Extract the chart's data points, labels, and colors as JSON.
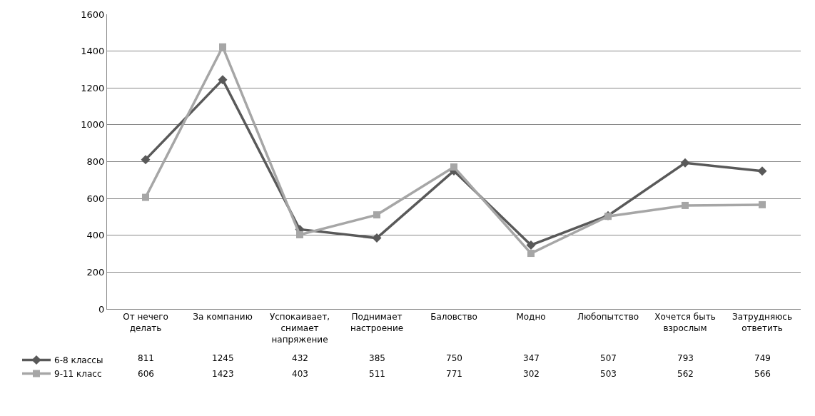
{
  "chart_data": {
    "type": "line",
    "categories": [
      "От нечего делать",
      "За компанию",
      "Успокаивает, снимает напряжение",
      "Поднимает настроение",
      "Баловство",
      "Модно",
      "Любопытство",
      "Хочется быть взрослым",
      "Затрудняюсь ответить"
    ],
    "series": [
      {
        "name": "6-8 классы",
        "color": "#595959",
        "marker": "diamond",
        "values": [
          811,
          1245,
          432,
          385,
          750,
          347,
          507,
          793,
          749
        ]
      },
      {
        "name": "9-11 класс",
        "color": "#a6a6a6",
        "marker": "square",
        "values": [
          606,
          1423,
          403,
          511,
          771,
          302,
          503,
          562,
          566
        ]
      }
    ],
    "ylim": [
      0,
      1600
    ],
    "yticks": [
      0,
      200,
      400,
      600,
      800,
      1000,
      1200,
      1400,
      1600
    ],
    "grid": "y",
    "legend": "bottom left",
    "data_labels": true
  }
}
